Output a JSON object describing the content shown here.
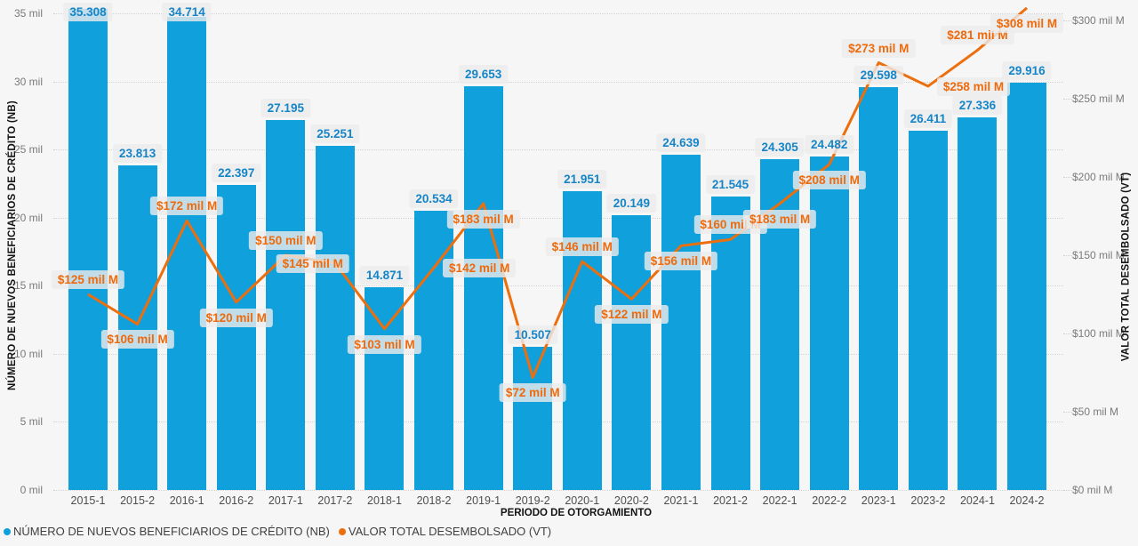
{
  "page": {
    "background": "#F6F6F6"
  },
  "chart_data": {
    "type": "combo-bar-line",
    "categories": [
      "2015-1",
      "2015-2",
      "2016-1",
      "2016-2",
      "2017-1",
      "2017-2",
      "2018-1",
      "2018-2",
      "2019-1",
      "2019-2",
      "2020-1",
      "2020-2",
      "2021-1",
      "2021-2",
      "2022-1",
      "2022-2",
      "2023-1",
      "2023-2",
      "2024-1",
      "2024-2"
    ],
    "series": [
      {
        "name": "NÚMERO DE NUEVOS BENEFICIARIOS DE CRÉDITO (NB)",
        "type": "bar",
        "axis": "left",
        "color": "#10A1DC",
        "values": [
          35308,
          23813,
          34714,
          22397,
          27195,
          25251,
          14871,
          20534,
          29653,
          10507,
          21951,
          20149,
          24639,
          21545,
          24305,
          24482,
          29598,
          26411,
          27336,
          29916
        ],
        "labels": [
          "35.308",
          "23.813",
          "34.714",
          "22.397",
          "27.195",
          "25.251",
          "14.871",
          "20.534",
          "29.653",
          "10.507",
          "21.951",
          "20.149",
          "24.639",
          "21.545",
          "24.305",
          "24.482",
          "29.598",
          "26.411",
          "27.336",
          "29.916"
        ]
      },
      {
        "name": "VALOR TOTAL DESEMBOLSADO (VT)",
        "type": "line",
        "axis": "right",
        "color": "#ED6E0C",
        "values": [
          125,
          106,
          172,
          120,
          150,
          145,
          103,
          142,
          183,
          72,
          146,
          122,
          156,
          160,
          183,
          208,
          273,
          258,
          281,
          308
        ],
        "labels": [
          "$125 mil M",
          "$106 mil M",
          "$172 mil M",
          "$120 mil M",
          "$150 mil M",
          "$145 mil M",
          "$103 mil M",
          "$142 mil M",
          "$183 mil M",
          "$72 mil M",
          "$146 mil M",
          "$122 mil M",
          "$156 mil M",
          "$160 mil M",
          "$183 mil M",
          "$208 mil M",
          "$273 mil M",
          "$258 mil M",
          "$281 mil M",
          "$308 mil M"
        ],
        "label_positions": [
          "above",
          "below",
          "above",
          "below",
          "above",
          "left",
          "below",
          "right",
          "below",
          "below",
          "above",
          "below",
          "below",
          "above",
          "below",
          "below",
          "above",
          "right",
          "above",
          "below"
        ]
      }
    ],
    "left_axis": {
      "title": "NÚMERO DE NUEVOS BENEFICIARIOS DE CRÉDITO (NB)",
      "ticks": [
        "0 mil",
        "5 mil",
        "10 mil",
        "15 mil",
        "20 mil",
        "25 mil",
        "30 mil",
        "35 mil"
      ],
      "tick_values": [
        0,
        5000,
        10000,
        15000,
        20000,
        25000,
        30000,
        35000
      ],
      "max": 35000
    },
    "right_axis": {
      "title": "VALOR TOTAL DESEMBOLSADO (VT)",
      "ticks": [
        "$0 mil M",
        "$50 mil M",
        "$100 mil M",
        "$150 mil M",
        "$200 mil M",
        "$250 mil M",
        "$300 mil M"
      ],
      "tick_values": [
        0,
        50,
        100,
        150,
        200,
        250,
        300
      ],
      "max": 300
    },
    "x_axis": {
      "title": "PERIODO DE OTORGAMIENTO"
    },
    "legend": [
      {
        "label": "NÚMERO DE NUEVOS BENEFICIARIOS DE CRÉDITO (NB)",
        "color": "#10A1DC"
      },
      {
        "label": "VALOR TOTAL DESEMBOLSADO (VT)",
        "color": "#ED6E0C"
      }
    ],
    "grid": true,
    "legend_position": "bottom-left",
    "label_colors": {
      "bar_label_text": "#1585C8",
      "line_label_text": "#EE6A0D"
    }
  }
}
